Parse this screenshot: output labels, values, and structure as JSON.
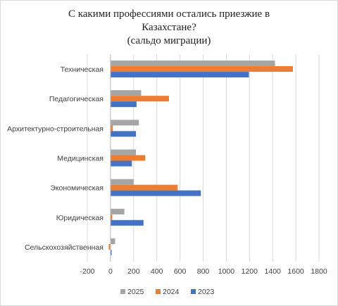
{
  "chart_data": {
    "type": "bar",
    "orientation": "horizontal",
    "title_lines": [
      "С какими профессиями  остались приезжие в",
      "Казахстане?",
      "(сальдо миграции)"
    ],
    "categories": [
      "Техническая",
      "Педагогическая",
      "Архитектурно-строительная",
      "Медицинская",
      "Экономическая",
      "Юридическая",
      "Сельскохозяйственная"
    ],
    "series": [
      {
        "name": "2025",
        "color": "#a5a5a5",
        "values": [
          1420,
          265,
          245,
          220,
          200,
          120,
          40
        ]
      },
      {
        "name": "2024",
        "color": "#ed7d31",
        "values": [
          1575,
          505,
          20,
          300,
          580,
          15,
          -15
        ]
      },
      {
        "name": "2023",
        "color": "#4472c4",
        "values": [
          1195,
          225,
          220,
          185,
          780,
          285,
          10
        ]
      }
    ],
    "xlim": [
      -200,
      1800
    ],
    "xticks": [
      -200,
      0,
      200,
      400,
      600,
      800,
      1000,
      1200,
      1400,
      1600,
      1800
    ],
    "grid": true,
    "legend_position": "bottom",
    "legend_order": [
      "2025",
      "2024",
      "2023"
    ]
  }
}
